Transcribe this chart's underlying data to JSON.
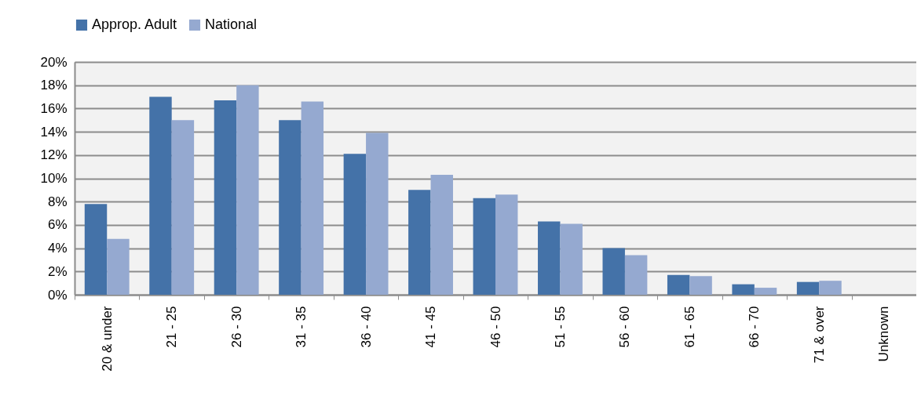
{
  "chart_data": {
    "type": "bar",
    "categories": [
      "20 & under",
      "21 - 25",
      "26 - 30",
      "31 - 35",
      "36 - 40",
      "41 - 45",
      "46 - 50",
      "51 - 55",
      "56 - 60",
      "61 - 65",
      "66 - 70",
      "71 & over",
      "Unknown"
    ],
    "series": [
      {
        "name": "Approp. Adult",
        "color": "#4472a8",
        "values": [
          7.8,
          17.0,
          16.7,
          15.0,
          12.1,
          9.0,
          8.3,
          6.3,
          4.0,
          1.7,
          0.9,
          1.1,
          null
        ]
      },
      {
        "name": "National",
        "color": "#95a9d0",
        "values": [
          4.8,
          15.0,
          18.0,
          16.6,
          13.9,
          10.3,
          8.6,
          6.1,
          3.4,
          1.6,
          0.6,
          1.2,
          null
        ]
      }
    ],
    "ylim": [
      0,
      20
    ],
    "yticks": [
      {
        "value": 0,
        "label": "0%"
      },
      {
        "value": 2,
        "label": "2%"
      },
      {
        "value": 4,
        "label": "4%"
      },
      {
        "value": 6,
        "label": "6%"
      },
      {
        "value": 8,
        "label": "8%"
      },
      {
        "value": 10,
        "label": "10%"
      },
      {
        "value": 12,
        "label": "12%"
      },
      {
        "value": 14,
        "label": "14%"
      },
      {
        "value": 16,
        "label": "16%"
      },
      {
        "value": 18,
        "label": "18%"
      },
      {
        "value": 20,
        "label": "20%"
      }
    ],
    "grid": true,
    "legend": "top"
  }
}
